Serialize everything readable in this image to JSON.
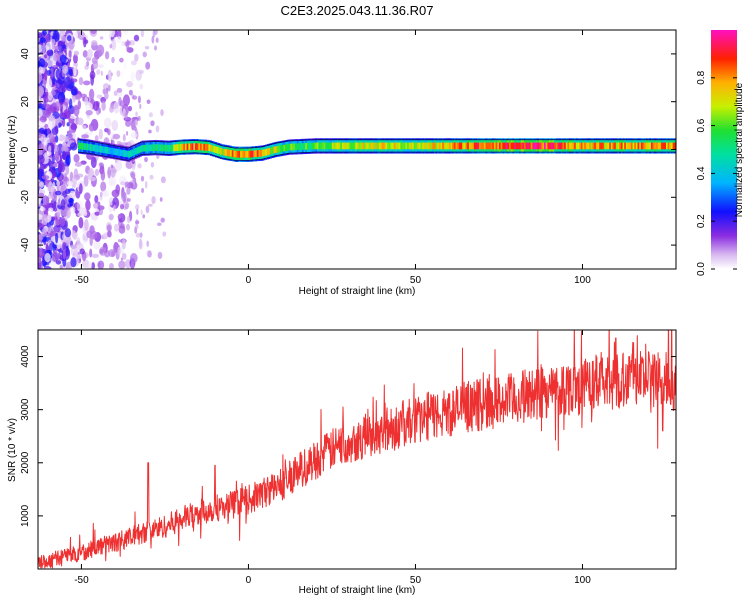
{
  "figure_title": "C2E3.2025.043.11.36.R07",
  "chart_data": [
    {
      "type": "heatmap",
      "title": "C2E3.2025.043.11.36.R07",
      "xlabel": "Height of straight line (km)",
      "ylabel": "Frequency (Hz)",
      "xlim": [
        -63,
        128
      ],
      "ylim": [
        -50,
        50
      ],
      "xticks": [
        -50,
        0,
        50,
        100
      ],
      "yticks": [
        -40,
        -20,
        0,
        20,
        40
      ],
      "colorbar": {
        "label": "Normalized spectral amplitude",
        "range": [
          0,
          1
        ],
        "ticks": [
          0.0,
          0.2,
          0.4,
          0.6,
          0.8
        ],
        "colormap": [
          "#ffffff",
          "#b48ce6",
          "#6a00d8",
          "#0000ff",
          "#00c8ff",
          "#00e060",
          "#c8f000",
          "#ffb400",
          "#ff0000",
          "#ff00c8"
        ]
      },
      "ridge": {
        "x": [
          -51,
          -48,
          -44,
          -40,
          -36,
          -32,
          -28,
          -24,
          -20,
          -16,
          -12,
          -8,
          -4,
          0,
          4,
          8,
          12,
          20,
          30,
          40,
          50,
          60,
          70,
          80,
          90,
          100,
          110,
          120,
          128
        ],
        "y": [
          1.5,
          1.0,
          0.0,
          -1.0,
          -2.0,
          0.5,
          0.8,
          0.5,
          1.0,
          1.2,
          0.8,
          -1.0,
          -2.0,
          -2.0,
          -1.5,
          0.0,
          1.0,
          1.5,
          1.5,
          1.5,
          1.5,
          1.5,
          1.5,
          1.5,
          1.5,
          1.5,
          1.5,
          1.5,
          1.5
        ],
        "amplitude": [
          0.55,
          0.5,
          0.45,
          0.4,
          0.45,
          0.5,
          0.55,
          0.55,
          0.85,
          0.85,
          0.8,
          0.75,
          0.9,
          0.9,
          0.75,
          0.7,
          0.6,
          0.6,
          0.7,
          0.75,
          0.7,
          0.8,
          0.9,
          0.95,
          0.95,
          0.8,
          0.8,
          0.85,
          0.85
        ]
      }
    },
    {
      "type": "line",
      "xlabel": "Height of straight line (km)",
      "ylabel": "SNR (10 * v/v)",
      "xlim": [
        -63,
        128
      ],
      "ylim": [
        0,
        4500
      ],
      "xticks": [
        -50,
        0,
        50,
        100
      ],
      "yticks": [
        1000,
        2000,
        3000,
        4000
      ],
      "color": "#ee3030",
      "series": [
        {
          "x": [
            -63,
            -60,
            -55,
            -50,
            -45,
            -40,
            -35,
            -30,
            -25,
            -20,
            -15,
            -10,
            -5,
            0,
            5,
            10,
            15,
            20,
            25,
            30,
            35,
            40,
            45,
            50,
            55,
            60,
            65,
            70,
            75,
            80,
            85,
            90,
            95,
            100,
            105,
            110,
            115,
            120,
            125,
            128
          ],
          "y": [
            100,
            150,
            250,
            300,
            420,
            500,
            600,
            720,
            800,
            950,
            1050,
            1150,
            1200,
            1300,
            1450,
            1600,
            1850,
            2050,
            2250,
            2400,
            2500,
            2600,
            2700,
            2800,
            2900,
            2950,
            3050,
            3100,
            3150,
            3200,
            3300,
            3350,
            3400,
            3450,
            3500,
            3550,
            3650,
            3600,
            3550,
            3500
          ]
        }
      ],
      "spikes": [
        {
          "x": -30,
          "y": 2000
        },
        {
          "x": -10,
          "y": 1950
        },
        {
          "x": 14,
          "y": 2100
        },
        {
          "x": 110,
          "y": 4350
        },
        {
          "x": 114,
          "y": 4000
        },
        {
          "x": 124,
          "y": 2600
        }
      ]
    }
  ]
}
